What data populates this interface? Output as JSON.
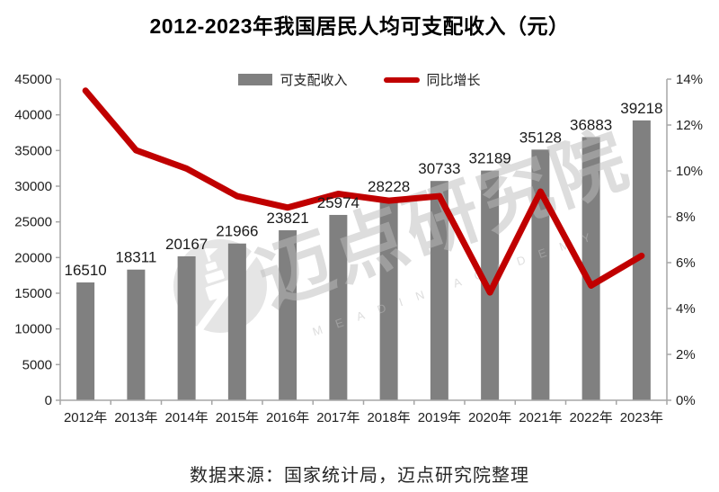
{
  "title": "2012-2023年我国居民人均可支配收入（元）",
  "legend": [
    {
      "label": "可支配收入",
      "swatch": "bar",
      "color": "#808080"
    },
    {
      "label": "同比增长",
      "swatch": "line",
      "color": "#C00000"
    }
  ],
  "watermark": {
    "logo": "meadin-tower-logo",
    "text": "迈点研究院",
    "subtext": "MEADIN ACADEMY"
  },
  "footer": "数据来源：国家统计局，迈点研究院整理",
  "chart_data": {
    "type": "bar+line",
    "title": "2012-2023年我国居民人均可支配收入（元）",
    "categories": [
      "2012年",
      "2013年",
      "2014年",
      "2015年",
      "2016年",
      "2017年",
      "2018年",
      "2019年",
      "2020年",
      "2021年",
      "2022年",
      "2023年"
    ],
    "series": [
      {
        "name": "可支配收入",
        "type": "bar",
        "axis": "left",
        "color": "#808080",
        "values": [
          16510,
          18311,
          20167,
          21966,
          23821,
          25974,
          28228,
          30733,
          32189,
          35128,
          36883,
          39218
        ]
      },
      {
        "name": "同比增长",
        "type": "line",
        "axis": "right",
        "color": "#C00000",
        "unit": "%",
        "values": [
          13.5,
          10.9,
          10.1,
          8.9,
          8.4,
          9.0,
          8.7,
          8.9,
          4.7,
          9.1,
          5.0,
          6.3
        ]
      }
    ],
    "left_axis": {
      "min": 0,
      "max": 45000,
      "step": 5000
    },
    "right_axis": {
      "min": 0,
      "max": 14,
      "step": 2,
      "unit": "%"
    },
    "grid": false,
    "legend_position": "top-center",
    "data_labels": "bar-series-only",
    "axis_color": "#a6a6a6",
    "label_color": "#1f1f1f"
  }
}
